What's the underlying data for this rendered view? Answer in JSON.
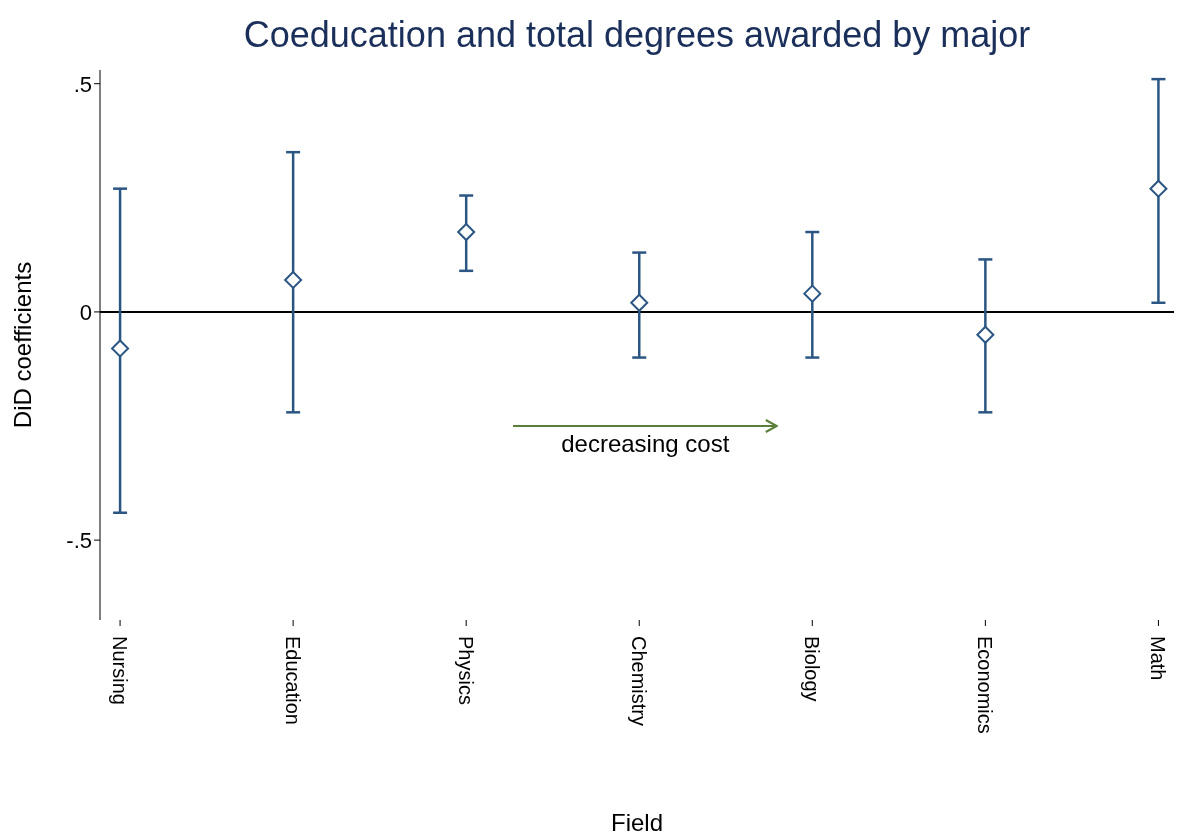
{
  "chart_data": {
    "type": "scatter",
    "title": "Coeducation and total degrees awarded by major",
    "xlabel": "Field",
    "ylabel": "DiD coefficients",
    "categories": [
      "Nursing",
      "Education",
      "Physics",
      "Chemistry",
      "Biology",
      "Economics",
      "Math"
    ],
    "values": [
      -0.08,
      0.07,
      0.175,
      0.02,
      0.04,
      -0.05,
      0.27
    ],
    "errors": [
      [
        -0.44,
        0.27
      ],
      [
        -0.22,
        0.35
      ],
      [
        0.09,
        0.255
      ],
      [
        -0.1,
        0.13
      ],
      [
        -0.1,
        0.175
      ],
      [
        -0.22,
        0.115
      ],
      [
        0.02,
        0.51
      ]
    ],
    "color": "#2b5683",
    "marker": "diamond",
    "ylim": [
      -0.675,
      0.53
    ],
    "yticks": [
      {
        "value": 0.5,
        "label": ".5"
      },
      0,
      {
        "value": -0.5,
        "label": "-.5"
      }
    ],
    "ref_lines": [
      {
        "axis": "y",
        "value": 0,
        "color": "#000000"
      }
    ],
    "annotations": [
      "decreasing cost"
    ]
  }
}
